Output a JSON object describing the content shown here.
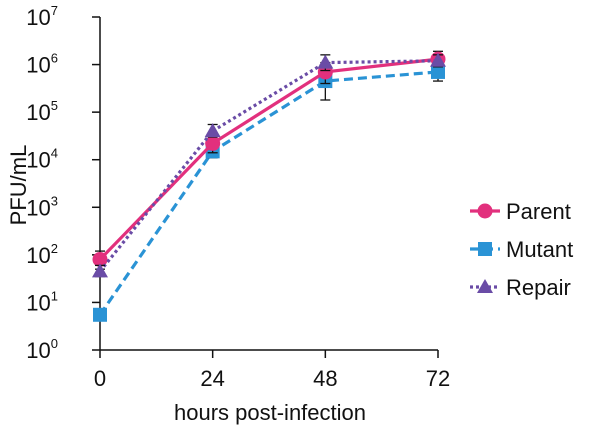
{
  "chart_data": {
    "type": "line",
    "xlabel": "hours post-infection",
    "ylabel": "PFU/mL",
    "yscale": "log",
    "x": [
      0,
      24,
      48,
      72
    ],
    "x_ticks": [
      "0",
      "24",
      "48",
      "72"
    ],
    "ylim": [
      1,
      10000000
    ],
    "y_ticks": [
      {
        "base": "10",
        "exp": "0"
      },
      {
        "base": "10",
        "exp": "1"
      },
      {
        "base": "10",
        "exp": "2"
      },
      {
        "base": "10",
        "exp": "3"
      },
      {
        "base": "10",
        "exp": "4"
      },
      {
        "base": "10",
        "exp": "5"
      },
      {
        "base": "10",
        "exp": "6"
      },
      {
        "base": "10",
        "exp": "7"
      }
    ],
    "legend_position": "right",
    "series": [
      {
        "name": "Parent",
        "color": "#e2307d",
        "marker": "circle",
        "line_style": "solid",
        "values": [
          80,
          22000,
          700000,
          1300000
        ],
        "err_low": [
          50,
          14000,
          400000,
          900000
        ],
        "err_high": [
          120,
          35000,
          1100000,
          1900000
        ]
      },
      {
        "name": "Mutant",
        "color": "#2a93d5",
        "marker": "square",
        "line_style": "dashed",
        "values": [
          5.5,
          15000,
          450000,
          700000
        ],
        "err_low": [
          5.5,
          11000,
          180000,
          450000
        ],
        "err_high": [
          7,
          20000,
          700000,
          900000
        ]
      },
      {
        "name": "Repair",
        "color": "#6a4ca6",
        "marker": "triangle",
        "line_style": "dotted",
        "values": [
          45,
          40000,
          1100000,
          1200000
        ],
        "err_low": [
          35,
          30000,
          750000,
          900000
        ],
        "err_high": [
          60,
          55000,
          1600000,
          1600000
        ]
      }
    ]
  }
}
